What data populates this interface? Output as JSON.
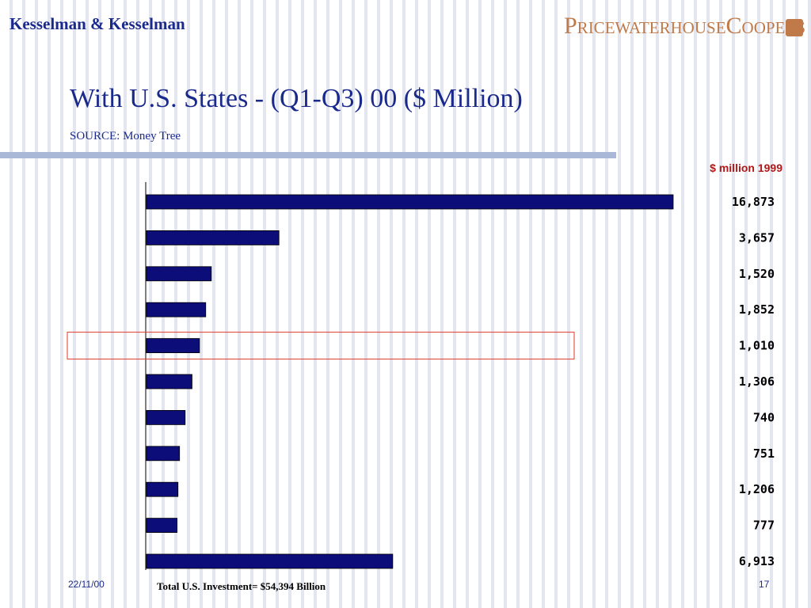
{
  "header": {
    "company": "Kesselman & Kesselman",
    "logo_text": "PricewaterhouseCoopers",
    "title": "With U.S. States - (Q1-Q3) 00 ($ Million)",
    "source": "SOURCE: Money Tree"
  },
  "chart_data": {
    "type": "bar",
    "orientation": "horizontal",
    "legend_label": "$ million 1999",
    "value_labels": [
      "16,873",
      "3,657",
      "1,520",
      "1,852",
      "1,010",
      "1,306",
      "740",
      "751",
      "1,206",
      "777",
      "6,913"
    ],
    "values": [
      16900,
      4250,
      2080,
      1900,
      1700,
      1460,
      1240,
      1060,
      1010,
      980,
      7900
    ],
    "highlighted_index": 4,
    "highlight_color": "#e03a2a",
    "bar_color": "#0d0d7a"
  },
  "footer": {
    "date": "22/11/00",
    "total": "Total U.S. Investment= $54,394 Billion",
    "page": "17"
  }
}
